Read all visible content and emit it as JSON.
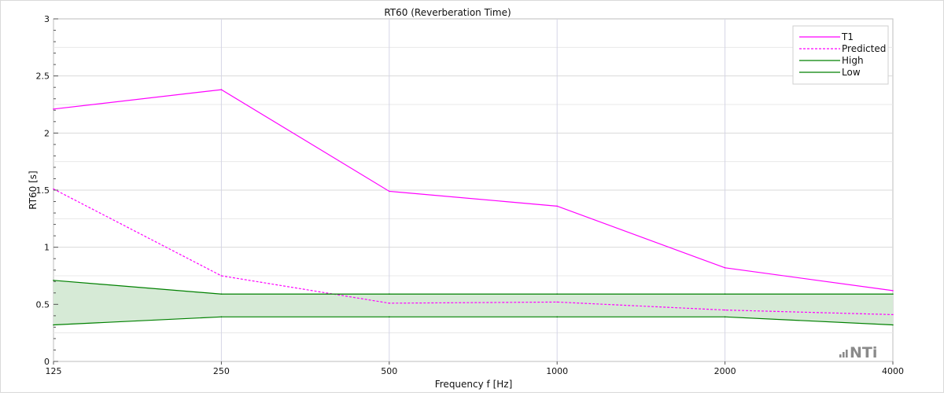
{
  "chart_data": {
    "type": "line",
    "title": "RT60 (Reverberation Time)",
    "xlabel": "Frequency f [Hz]",
    "ylabel": "RT60 [s]",
    "x_scale": "log2",
    "categories": [
      "125",
      "250",
      "500",
      "1000",
      "2000",
      "4000"
    ],
    "x": [
      125,
      250,
      500,
      1000,
      2000,
      4000
    ],
    "ylim": [
      0,
      3
    ],
    "y_ticks": [
      "0",
      "0.5",
      "1",
      "1.5",
      "2",
      "2.5",
      "3"
    ],
    "y_tick_values": [
      0,
      0.5,
      1,
      1.5,
      2,
      2.5,
      3
    ],
    "grid": true,
    "legend_position": "top-right",
    "series": [
      {
        "name": "T1",
        "values": [
          2.21,
          2.38,
          1.49,
          1.36,
          0.82,
          0.62
        ],
        "color": "#ff00ff",
        "style": "solid"
      },
      {
        "name": "Predicted",
        "values": [
          1.51,
          0.75,
          0.51,
          0.52,
          0.45,
          0.41
        ],
        "color": "#ff00ff",
        "style": "dashed"
      },
      {
        "name": "High",
        "values": [
          0.71,
          0.59,
          0.59,
          0.59,
          0.59,
          0.59
        ],
        "color": "#008000",
        "style": "solid"
      },
      {
        "name": "Low",
        "values": [
          0.32,
          0.39,
          0.39,
          0.39,
          0.39,
          0.32
        ],
        "color": "#008000",
        "style": "solid"
      }
    ],
    "band_fill_color": "#d6ead6",
    "logo_text": "NTi"
  }
}
